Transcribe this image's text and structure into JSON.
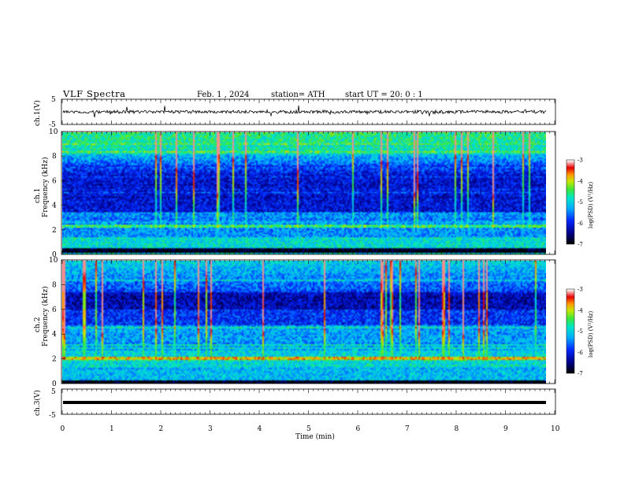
{
  "header": {
    "title": "VLF  Spectra",
    "date": "Feb. 1  , 2024",
    "station": "station= ATH",
    "start": "start  UT  =   20: 0   : 1"
  },
  "colorbar": {
    "ticks": [
      "-3",
      "-4",
      "-5",
      "-6",
      "-7"
    ],
    "label": "log(PSD) (V²/Hz)"
  },
  "chart_data": [
    {
      "type": "line",
      "ylabel": "ch.1(V)",
      "ylim": [
        -5,
        5
      ],
      "y_ticks": [
        "5",
        "-5"
      ],
      "xlim": [
        0,
        10
      ],
      "series": [
        {
          "values_description_free": true,
          "mean": 0.1,
          "range": [
            -1.8,
            1.8
          ]
        }
      ]
    },
    {
      "type": "heatmap",
      "ylabel": "ch.1\nFrequency  (kHz)",
      "ylim": [
        0,
        10
      ],
      "y_ticks": [
        "0",
        "2",
        "4",
        "6",
        "8",
        "10"
      ],
      "xlim": [
        0,
        9.8
      ],
      "zlim": [
        -7,
        -3
      ]
    },
    {
      "type": "heatmap",
      "ylabel": "ch.2\nFrequency  (kHz)",
      "ylim": [
        0,
        10
      ],
      "y_ticks": [
        "0",
        "2",
        "4",
        "6",
        "8",
        "10"
      ],
      "xlim": [
        0,
        9.8
      ],
      "zlim": [
        -7,
        -3
      ]
    },
    {
      "type": "line",
      "ylabel": "ch.3(V)",
      "ylim": [
        -5,
        5
      ],
      "y_ticks": [
        "5",
        "-5"
      ],
      "xlim": [
        0,
        10
      ],
      "xlabel": "Time  (min)",
      "x_ticks": [
        "0",
        "1",
        "2",
        "3",
        "4",
        "5",
        "6",
        "7",
        "8",
        "9",
        "10"
      ],
      "series": [
        {
          "mean": -1.8,
          "range": [
            -2.1,
            -1.5
          ]
        }
      ]
    }
  ]
}
